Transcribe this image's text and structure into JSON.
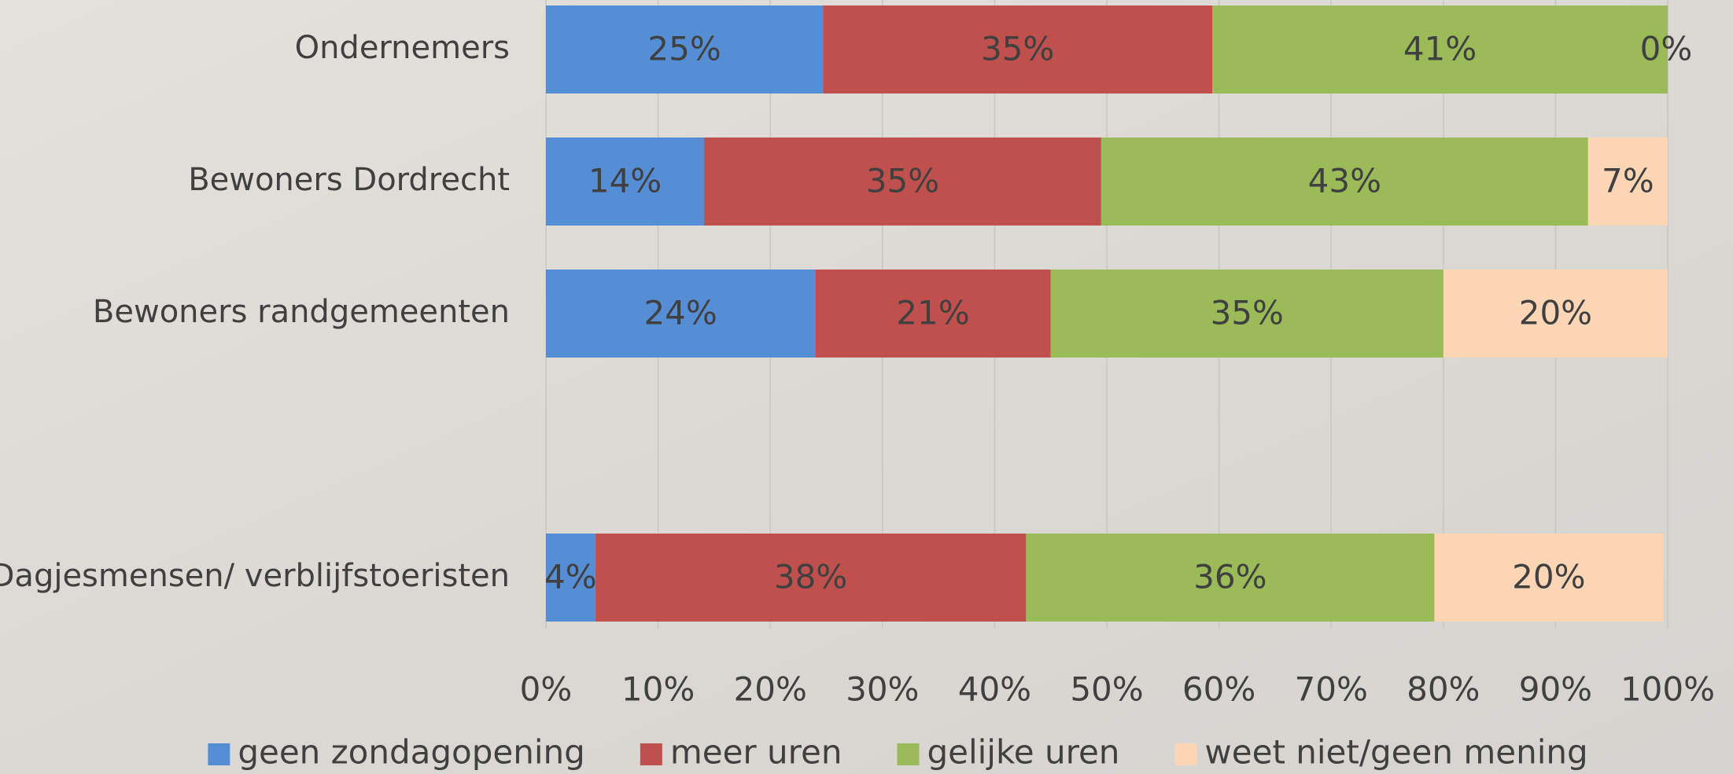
{
  "chart_data": {
    "type": "bar",
    "orientation": "horizontal",
    "stacked": true,
    "categories": [
      "Ondernemers",
      "Bewoners Dordrecht",
      "Bewoners randgemeenten",
      null,
      "Dagjesmensen/ verblijfstoeristen"
    ],
    "series": [
      {
        "name": "geen zondagopening",
        "color": "#558ed5",
        "values": [
          24.7,
          14.1,
          24.0,
          null,
          4.4
        ],
        "value_labels": [
          "25%",
          "14%",
          "24%",
          null,
          "4%"
        ]
      },
      {
        "name": "meer uren",
        "color": "#c0504d",
        "values": [
          34.7,
          35.4,
          21.0,
          null,
          38.4
        ],
        "value_labels": [
          "35%",
          "35%",
          "21%",
          null,
          "38%"
        ]
      },
      {
        "name": "gelijke uren",
        "color": "#9bbb59",
        "values": [
          40.6,
          43.4,
          35.0,
          null,
          36.4
        ],
        "value_labels": [
          "41%",
          "43%",
          "35%",
          null,
          "36%"
        ]
      },
      {
        "name": "weet niet/geen mening",
        "color": "#fcd5b5",
        "values": [
          0,
          7.1,
          20.0,
          null,
          20.4
        ],
        "value_labels": [
          "0%",
          "7%",
          "20%",
          null,
          "20%"
        ]
      }
    ],
    "xlim": [
      0,
      100
    ],
    "xticks": [
      {
        "value": 0,
        "label": "0%"
      },
      {
        "value": 10,
        "label": "10%"
      },
      {
        "value": 20,
        "label": "20%"
      },
      {
        "value": 30,
        "label": "30%"
      },
      {
        "value": 40,
        "label": "40%"
      },
      {
        "value": 50,
        "label": "50%"
      },
      {
        "value": 60,
        "label": "60%"
      },
      {
        "value": 70,
        "label": "70%"
      },
      {
        "value": 80,
        "label": "80%"
      },
      {
        "value": 90,
        "label": "90%"
      },
      {
        "value": 100,
        "label": "100%"
      }
    ],
    "grid": true,
    "legend": "bottom"
  }
}
